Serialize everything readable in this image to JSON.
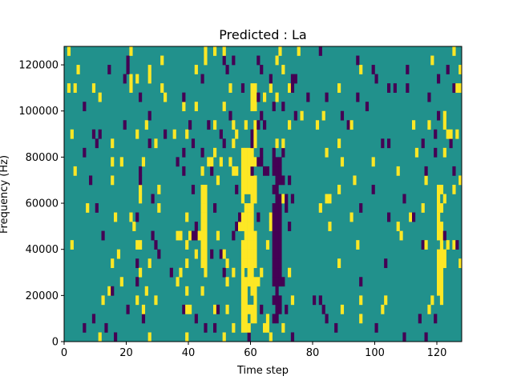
{
  "chart_data": {
    "type": "heatmap",
    "title": "Predicted : La",
    "xlabel": "Time step",
    "ylabel": "Frequency (Hz)",
    "xlim": [
      0,
      128
    ],
    "ylim": [
      0,
      128000
    ],
    "x_ticks": [
      0,
      20,
      40,
      60,
      80,
      100,
      120
    ],
    "y_ticks": [
      0,
      20000,
      40000,
      60000,
      80000,
      100000,
      120000
    ],
    "y_tick_labels": [
      "0",
      "20000",
      "40000",
      "60000",
      "80000",
      "100000",
      "120000"
    ],
    "grid": false,
    "n_time_steps": 128,
    "n_frequency_bins": 32,
    "colormap": "viridis",
    "colors": {
      "background": "#21918c",
      "high": "#fde725",
      "low": "#440154"
    },
    "prominent_bands": [
      {
        "x_start": 57,
        "x_end": 60,
        "y_start": 4000,
        "y_end": 84000,
        "value": "high"
      },
      {
        "x_start": 60,
        "x_end": 62,
        "y_start": 8000,
        "y_end": 112000,
        "value": "high"
      },
      {
        "x_start": 67,
        "x_end": 70,
        "y_start": 4000,
        "y_end": 84000,
        "value": "low"
      },
      {
        "x_start": 44,
        "x_end": 46,
        "y_start": 28000,
        "y_end": 68000,
        "value": "high"
      },
      {
        "x_start": 120,
        "x_end": 122,
        "y_start": 16000,
        "y_end": 68000,
        "value": "high"
      }
    ]
  }
}
